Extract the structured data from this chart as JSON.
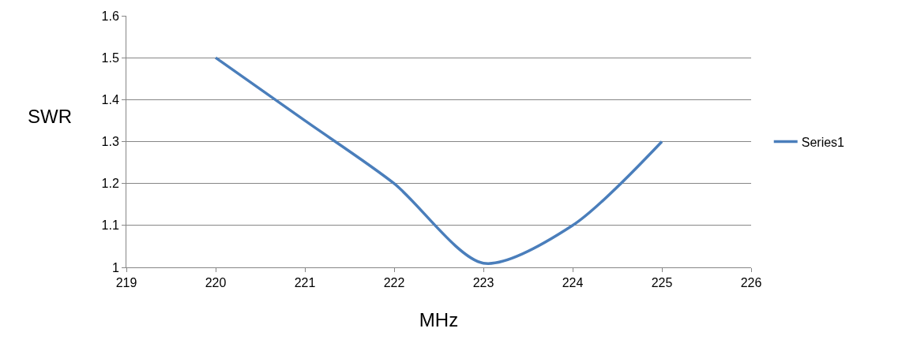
{
  "chart_data": {
    "type": "line",
    "xlabel": "MHz",
    "ylabel": "SWR",
    "x": [
      220,
      221,
      222,
      223,
      224,
      225
    ],
    "series": [
      {
        "name": "Series1",
        "color": "#4a7ebb",
        "values": [
          1.5,
          1.35,
          1.2,
          1.01,
          1.1,
          1.3
        ]
      }
    ],
    "xlim": [
      219,
      226
    ],
    "xticks": [
      219,
      220,
      221,
      222,
      223,
      224,
      225,
      226
    ],
    "ylim": [
      1,
      1.6
    ],
    "yticks": [
      1,
      1.1,
      1.2,
      1.3,
      1.4,
      1.5,
      1.6
    ],
    "grid": "y",
    "legend": "right",
    "marker": "none",
    "line_style": "solid"
  }
}
